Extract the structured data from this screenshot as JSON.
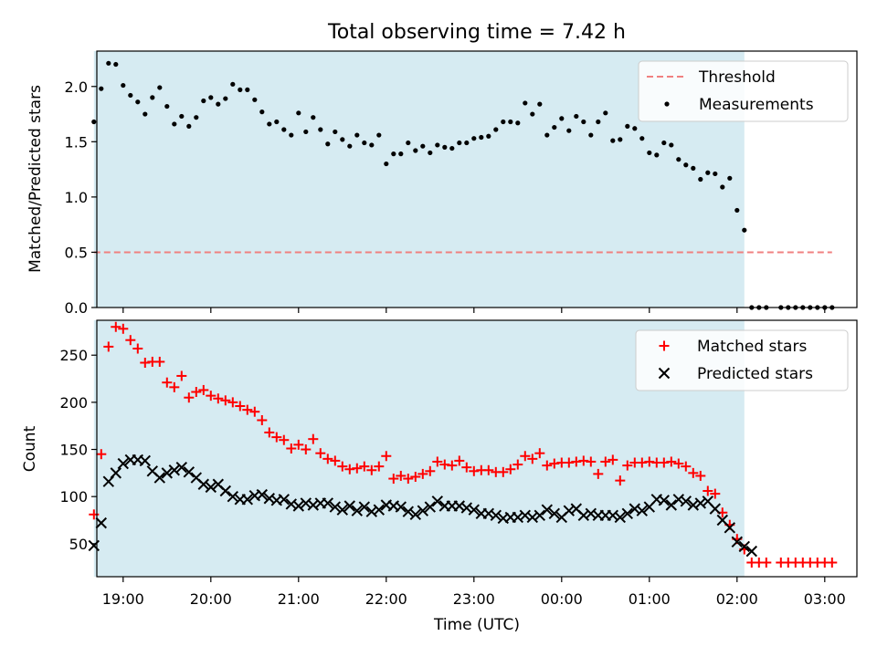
{
  "title": "Total observing time = 7.42 h",
  "colors": {
    "shade": "#add8e6",
    "threshold": "#f08080",
    "measurement": "#000000",
    "matched": "#ff0000",
    "predicted": "#000000"
  },
  "chart_data": [
    {
      "type": "scatter",
      "panel": "top",
      "ylabel": "Matched/Predicted stars",
      "ylim": [
        0,
        2.32
      ],
      "yticks": [
        "0.0",
        "0.5",
        "1.0",
        "1.5",
        "2.0"
      ],
      "xlim": [
        "18:42",
        "03:22"
      ],
      "observing_window": [
        "18:40",
        "02:05"
      ],
      "grid": false,
      "legend_position": "upper right",
      "legend": [
        "Threshold",
        "Measurements"
      ],
      "threshold": {
        "name": "Threshold",
        "value": 0.5,
        "x": [
          "18:40",
          "03:05"
        ]
      },
      "series": [
        {
          "name": "Measurements",
          "x": [
            "18:40",
            "18:45",
            "18:50",
            "18:55",
            "19:00",
            "19:05",
            "19:10",
            "19:15",
            "19:20",
            "19:25",
            "19:30",
            "19:35",
            "19:40",
            "19:45",
            "19:50",
            "19:55",
            "20:00",
            "20:05",
            "20:10",
            "20:15",
            "20:20",
            "20:25",
            "20:30",
            "20:35",
            "20:40",
            "20:45",
            "20:50",
            "20:55",
            "21:00",
            "21:05",
            "21:10",
            "21:15",
            "21:20",
            "21:25",
            "21:30",
            "21:35",
            "21:40",
            "21:45",
            "21:50",
            "21:55",
            "22:00",
            "22:05",
            "22:10",
            "22:15",
            "22:20",
            "22:25",
            "22:30",
            "22:35",
            "22:40",
            "22:45",
            "22:50",
            "22:55",
            "23:00",
            "23:05",
            "23:10",
            "23:15",
            "23:20",
            "23:25",
            "23:30",
            "23:35",
            "23:40",
            "23:45",
            "23:50",
            "23:55",
            "00:00",
            "00:05",
            "00:10",
            "00:15",
            "00:20",
            "00:25",
            "00:30",
            "00:35",
            "00:40",
            "00:45",
            "00:50",
            "00:55",
            "01:00",
            "01:05",
            "01:10",
            "01:15",
            "01:20",
            "01:25",
            "01:30",
            "01:35",
            "01:40",
            "01:45",
            "01:50",
            "01:55",
            "02:00",
            "02:05",
            "02:10",
            "02:15",
            "02:20",
            "02:30",
            "02:35",
            "02:40",
            "02:45",
            "02:50",
            "02:55",
            "03:00",
            "03:05"
          ],
          "y": [
            1.68,
            1.98,
            2.21,
            2.2,
            2.01,
            1.92,
            1.86,
            1.75,
            1.9,
            1.99,
            1.82,
            1.66,
            1.73,
            1.64,
            1.72,
            1.87,
            1.9,
            1.84,
            1.89,
            2.02,
            1.97,
            1.97,
            1.88,
            1.77,
            1.66,
            1.68,
            1.61,
            1.56,
            1.76,
            1.59,
            1.72,
            1.61,
            1.48,
            1.59,
            1.52,
            1.46,
            1.56,
            1.49,
            1.47,
            1.56,
            1.3,
            1.39,
            1.39,
            1.49,
            1.42,
            1.46,
            1.4,
            1.47,
            1.45,
            1.44,
            1.49,
            1.49,
            1.53,
            1.54,
            1.55,
            1.61,
            1.68,
            1.68,
            1.67,
            1.85,
            1.75,
            1.84,
            1.56,
            1.63,
            1.71,
            1.6,
            1.73,
            1.68,
            1.56,
            1.68,
            1.76,
            1.51,
            1.52,
            1.64,
            1.62,
            1.53,
            1.4,
            1.38,
            1.49,
            1.47,
            1.34,
            1.29,
            1.26,
            1.16,
            1.22,
            1.21,
            1.09,
            1.17,
            0.88,
            0.7,
            0,
            0,
            0,
            0,
            0,
            0,
            0,
            0,
            0,
            0,
            0
          ]
        }
      ]
    },
    {
      "type": "scatter",
      "panel": "bottom",
      "xlabel": "Time (UTC)",
      "ylabel": "Count",
      "ylim": [
        15,
        287
      ],
      "yticks": [
        "50",
        "100",
        "150",
        "200",
        "250"
      ],
      "xlim": [
        "18:42",
        "03:22"
      ],
      "xticks": [
        "19:00",
        "20:00",
        "21:00",
        "22:00",
        "23:00",
        "00:00",
        "01:00",
        "02:00",
        "03:00"
      ],
      "observing_window": [
        "18:40",
        "02:05"
      ],
      "grid": false,
      "legend_position": "upper right",
      "legend": [
        "Matched stars",
        "Predicted stars"
      ],
      "series": [
        {
          "name": "Matched stars",
          "x": [
            "18:40",
            "18:45",
            "18:50",
            "18:55",
            "19:00",
            "19:05",
            "19:10",
            "19:15",
            "19:20",
            "19:25",
            "19:30",
            "19:35",
            "19:40",
            "19:45",
            "19:50",
            "19:55",
            "20:00",
            "20:05",
            "20:10",
            "20:15",
            "20:20",
            "20:25",
            "20:30",
            "20:35",
            "20:40",
            "20:45",
            "20:50",
            "20:55",
            "21:00",
            "21:05",
            "21:10",
            "21:15",
            "21:20",
            "21:25",
            "21:30",
            "21:35",
            "21:40",
            "21:45",
            "21:50",
            "21:55",
            "22:00",
            "22:05",
            "22:10",
            "22:15",
            "22:20",
            "22:25",
            "22:30",
            "22:35",
            "22:40",
            "22:45",
            "22:50",
            "22:55",
            "23:00",
            "23:05",
            "23:10",
            "23:15",
            "23:20",
            "23:25",
            "23:30",
            "23:35",
            "23:40",
            "23:45",
            "23:50",
            "23:55",
            "00:00",
            "00:05",
            "00:10",
            "00:15",
            "00:20",
            "00:25",
            "00:30",
            "00:35",
            "00:40",
            "00:45",
            "00:50",
            "00:55",
            "01:00",
            "01:05",
            "01:10",
            "01:15",
            "01:20",
            "01:25",
            "01:30",
            "01:35",
            "01:40",
            "01:45",
            "01:50",
            "01:55",
            "02:00",
            "02:05",
            "02:10",
            "02:15",
            "02:20",
            "02:30",
            "02:35",
            "02:40",
            "02:45",
            "02:50",
            "02:55",
            "03:00",
            "03:05"
          ],
          "y": [
            81,
            145,
            259,
            280,
            278,
            266,
            257,
            242,
            243,
            243,
            221,
            216,
            228,
            205,
            211,
            213,
            207,
            204,
            202,
            200,
            196,
            192,
            190,
            181,
            168,
            163,
            160,
            151,
            155,
            150,
            161,
            146,
            140,
            138,
            132,
            129,
            130,
            132,
            128,
            132,
            143,
            119,
            122,
            119,
            121,
            124,
            127,
            137,
            134,
            133,
            138,
            131,
            127,
            128,
            128,
            126,
            126,
            129,
            134,
            143,
            140,
            146,
            133,
            135,
            136,
            136,
            137,
            138,
            137,
            124,
            137,
            139,
            117,
            133,
            136,
            136,
            137,
            136,
            136,
            137,
            135,
            132,
            125,
            122,
            106,
            103,
            83,
            70,
            55,
            44,
            30,
            30,
            30,
            30,
            30,
            30,
            30,
            30,
            30,
            30,
            30
          ]
        },
        {
          "name": "Predicted stars",
          "x": [
            "18:40",
            "18:45",
            "18:50",
            "18:55",
            "19:00",
            "19:05",
            "19:10",
            "19:15",
            "19:20",
            "19:25",
            "19:30",
            "19:35",
            "19:40",
            "19:45",
            "19:50",
            "19:55",
            "20:00",
            "20:05",
            "20:10",
            "20:15",
            "20:20",
            "20:25",
            "20:30",
            "20:35",
            "20:40",
            "20:45",
            "20:50",
            "20:55",
            "21:00",
            "21:05",
            "21:10",
            "21:15",
            "21:20",
            "21:25",
            "21:30",
            "21:35",
            "21:40",
            "21:45",
            "21:50",
            "21:55",
            "22:00",
            "22:05",
            "22:10",
            "22:15",
            "22:20",
            "22:25",
            "22:30",
            "22:35",
            "22:40",
            "22:45",
            "22:50",
            "22:55",
            "23:00",
            "23:05",
            "23:10",
            "23:15",
            "23:20",
            "23:25",
            "23:30",
            "23:35",
            "23:40",
            "23:45",
            "23:50",
            "23:55",
            "00:00",
            "00:05",
            "00:10",
            "00:15",
            "00:20",
            "00:25",
            "00:30",
            "00:35",
            "00:40",
            "00:45",
            "00:50",
            "00:55",
            "01:00",
            "01:05",
            "01:10",
            "01:15",
            "01:20",
            "01:25",
            "01:30",
            "01:35",
            "01:40",
            "01:45",
            "01:50",
            "01:55",
            "02:00",
            "02:05",
            "02:10"
          ],
          "y": [
            48,
            72,
            116,
            125,
            135,
            139,
            139,
            138,
            127,
            120,
            125,
            128,
            131,
            126,
            120,
            113,
            110,
            113,
            106,
            100,
            97,
            97,
            101,
            102,
            98,
            96,
            97,
            92,
            90,
            93,
            91,
            93,
            93,
            89,
            86,
            90,
            85,
            89,
            84,
            86,
            91,
            90,
            89,
            84,
            81,
            85,
            89,
            95,
            90,
            90,
            90,
            88,
            86,
            82,
            82,
            80,
            77,
            78,
            78,
            80,
            78,
            80,
            86,
            82,
            78,
            85,
            87,
            80,
            82,
            80,
            80,
            80,
            78,
            82,
            87,
            85,
            89,
            97,
            96,
            91,
            97,
            95,
            91,
            93,
            95,
            87,
            75,
            67,
            52,
            47,
            42
          ]
        }
      ]
    }
  ]
}
